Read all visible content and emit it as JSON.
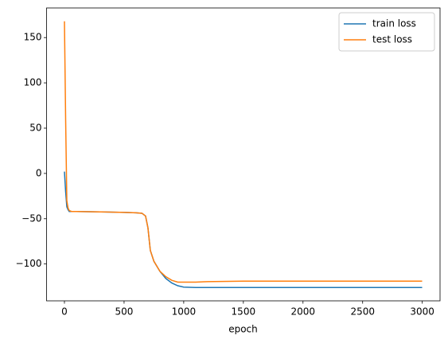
{
  "chart_data": {
    "type": "line",
    "xlabel": "epoch",
    "x": [
      0,
      10,
      20,
      30,
      40,
      60,
      100,
      300,
      500,
      600,
      650,
      680,
      700,
      720,
      750,
      800,
      850,
      900,
      950,
      1000,
      1100,
      1200,
      1500,
      2000,
      2500,
      2999
    ],
    "series": [
      {
        "name": "train loss",
        "color": "#1f77b4",
        "values": [
          2,
          -20,
          -37,
          -40,
          -42,
          -42,
          -42,
          -42.5,
          -43,
          -43.5,
          -44,
          -47,
          -60,
          -85,
          -97,
          -108,
          -116,
          -121,
          -124,
          -125.5,
          -126,
          -126,
          -126,
          -126,
          -126,
          -126
        ]
      },
      {
        "name": "test loss",
        "color": "#ff7f0e",
        "values": [
          168,
          60,
          -30,
          -38,
          -41,
          -42,
          -42,
          -42.5,
          -43,
          -43.5,
          -44,
          -47,
          -60,
          -85,
          -97,
          -108,
          -114,
          -118,
          -120,
          -120,
          -120,
          -119.5,
          -119,
          -119,
          -119,
          -119
        ]
      }
    ],
    "xlim": [
      -150,
      3149
    ],
    "ylim": [
      -140.7,
      182.7
    ],
    "xticks": [
      0,
      500,
      1000,
      1500,
      2000,
      2500,
      3000
    ],
    "yticks": [
      {
        "value": -100,
        "label": "−100"
      },
      {
        "value": -50,
        "label": "−50"
      },
      0,
      50,
      100,
      150
    ],
    "legend": "upper right"
  }
}
